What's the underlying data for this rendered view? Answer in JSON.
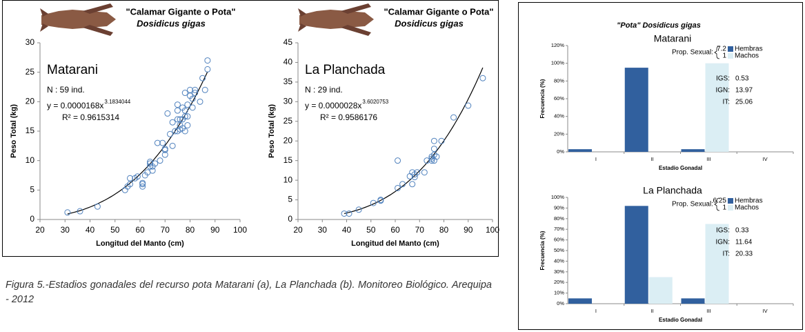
{
  "panel_title": "\"Pota\" Dosidicus gigas",
  "caption": "Figura 5.-Estadios gonadales del recurso pota Matarani (a), La Planchada (b). Monitoreo Biológico. Arequipa - 2012",
  "chart_data": [
    {
      "type": "scatter",
      "title": "\"Calamar Gigante o Pota\"",
      "subtitle": "Dosidicus gigas",
      "label": "Matarani",
      "annotation": "N : 59 ind.",
      "equation": "y = 0.0000168x",
      "equation_exponent": "3.1834044",
      "r_squared": "R² = 0.9615314",
      "x_label": "Longitud del Manto (cm)",
      "y_label": "Peso Total (kg)",
      "color": "#4f81bd",
      "xlim": [
        20,
        100
      ],
      "xticks": [
        20,
        30,
        40,
        50,
        60,
        70,
        80,
        90,
        100
      ],
      "ylim": [
        0,
        30
      ],
      "yticks": [
        0,
        5,
        10,
        15,
        20,
        25,
        30
      ],
      "x": [
        31,
        36,
        43,
        54,
        55,
        56,
        56,
        58,
        59,
        61,
        61,
        61,
        62,
        63,
        64,
        64,
        64,
        65,
        65,
        66,
        67,
        68,
        69,
        70,
        70,
        70,
        71,
        72,
        73,
        73,
        74,
        75,
        75,
        75,
        75,
        76,
        76,
        76,
        77,
        77,
        77,
        78,
        78,
        78,
        78,
        79,
        79,
        79,
        80,
        80,
        81,
        81,
        82,
        82,
        84,
        85,
        86,
        87,
        87
      ],
      "y": [
        1.2,
        1.4,
        2.2,
        5,
        5.6,
        6,
        7,
        7,
        7.3,
        5.6,
        6,
        6.2,
        7.5,
        8,
        9,
        9.5,
        9.8,
        8.3,
        9,
        9.5,
        13,
        10,
        13,
        11,
        11.8,
        12,
        18,
        14.5,
        12.5,
        16.5,
        15,
        15,
        17,
        18.5,
        19.5,
        15.3,
        16,
        17,
        15.5,
        17,
        19,
        15,
        17.5,
        18.5,
        21.5,
        16,
        17.5,
        19.5,
        21,
        22,
        19,
        20.5,
        21.5,
        22,
        20,
        24,
        22,
        25.5,
        27
      ]
    },
    {
      "type": "scatter",
      "title": "\"Calamar Gigante o Pota\"",
      "subtitle": "Dosidicus gigas",
      "label": "La Planchada",
      "annotation": "N : 29 ind.",
      "equation": "y = 0.0000028x",
      "equation_exponent": "3.6020753",
      "r_squared": "R² = 0.9586176",
      "x_label": "Longitud del Manto (cm)",
      "y_label": "Peso Total (kg)",
      "color": "#4f81bd",
      "xlim": [
        20,
        100
      ],
      "xticks": [
        20,
        30,
        40,
        50,
        60,
        70,
        80,
        90,
        100
      ],
      "ylim": [
        0,
        45
      ],
      "yticks": [
        0,
        5,
        10,
        15,
        20,
        25,
        30,
        35,
        40,
        45
      ],
      "x": [
        39,
        41,
        45,
        51,
        54,
        54,
        61,
        61,
        63,
        66,
        67,
        67,
        68,
        68,
        69,
        72,
        73,
        75,
        75,
        75,
        76,
        76,
        76,
        76,
        77,
        79,
        84,
        90,
        96
      ],
      "y": [
        1.5,
        1.5,
        2.5,
        4.2,
        4.8,
        5,
        8,
        15,
        9,
        11,
        9,
        12,
        10.8,
        11.5,
        12,
        12,
        15,
        15,
        15.5,
        16,
        15,
        16.5,
        18,
        20,
        16,
        20,
        26,
        29,
        36
      ]
    },
    {
      "type": "bar",
      "title": "Matarani",
      "x_label": "Estadio Gonadal",
      "y_label": "Frecuencia (%)",
      "categories": [
        "I",
        "II",
        "III",
        "IV"
      ],
      "series": [
        {
          "name": "Hembras",
          "color": "#31609e",
          "values": [
            3,
            95,
            3,
            0
          ]
        },
        {
          "name": "Machos",
          "color": "#dbeef4",
          "values": [
            0,
            0,
            100,
            0
          ]
        }
      ],
      "ylim": [
        0,
        120
      ],
      "yticks": [
        {
          "value": 0,
          "label": "0%"
        },
        {
          "value": 20,
          "label": "20%"
        },
        {
          "value": 40,
          "label": "40%"
        },
        {
          "value": 60,
          "label": "60%"
        },
        {
          "value": 80,
          "label": "80%"
        },
        {
          "value": 100,
          "label": "100%"
        },
        {
          "value": 120,
          "label": "120%"
        }
      ],
      "sex_ratio": {
        "label": "Prop. Sexual:",
        "values": [
          7.2,
          1
        ]
      },
      "stats": [
        {
          "label": "IGS:",
          "value": 0.53
        },
        {
          "label": "IGN:",
          "value": 13.97
        },
        {
          "label": "IT:",
          "value": 25.06
        }
      ]
    },
    {
      "type": "bar",
      "title": "La Planchada",
      "x_label": "Estadio Gonadal",
      "y_label": "Frecuencia (%)",
      "categories": [
        "I",
        "II",
        "III",
        "IV"
      ],
      "series": [
        {
          "name": "Hembras",
          "color": "#31609e",
          "values": [
            5,
            92,
            5,
            0
          ]
        },
        {
          "name": "Machos",
          "color": "#dbeef4",
          "values": [
            0,
            25,
            75,
            0
          ]
        }
      ],
      "ylim": [
        0,
        100
      ],
      "yticks": [
        {
          "value": 0,
          "label": "0%"
        },
        {
          "value": 10,
          "label": "10%"
        },
        {
          "value": 20,
          "label": "20%"
        },
        {
          "value": 30,
          "label": "30%"
        },
        {
          "value": 40,
          "label": "40%"
        },
        {
          "value": 50,
          "label": "50%"
        },
        {
          "value": 60,
          "label": "60%"
        },
        {
          "value": 70,
          "label": "70%"
        },
        {
          "value": 80,
          "label": "80%"
        },
        {
          "value": 90,
          "label": "90%"
        },
        {
          "value": 100,
          "label": "100%"
        }
      ],
      "sex_ratio": {
        "label": "Prop. Sexual:",
        "values": [
          6.25,
          1
        ]
      },
      "stats": [
        {
          "label": "IGS:",
          "value": 0.33
        },
        {
          "label": "IGN:",
          "value": 11.64
        },
        {
          "label": "IT:",
          "value": 20.33
        }
      ]
    }
  ]
}
